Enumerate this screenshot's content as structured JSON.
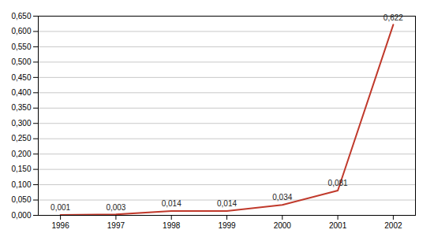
{
  "chart_data": {
    "type": "line",
    "x": [
      1996,
      1997,
      1998,
      1999,
      2000,
      2001,
      2002
    ],
    "values": [
      0.001,
      0.003,
      0.014,
      0.014,
      0.034,
      0.081,
      0.622
    ],
    "value_labels": [
      "0,001",
      "0,003",
      "0,014",
      "0,014",
      "0,034",
      "0,081",
      "0,622"
    ],
    "color": "#c0392b",
    "xlim": [
      1995.6,
      2002.4
    ],
    "xticks": [
      1996,
      1997,
      1998,
      1999,
      2000,
      2001,
      2002
    ],
    "ylim": [
      0,
      0.65
    ],
    "yticks": [
      {
        "value": 0,
        "label": "0,000"
      },
      {
        "value": 0.05,
        "label": "0,050"
      },
      {
        "value": 0.1,
        "label": "0,100"
      },
      {
        "value": 0.15,
        "label": "0,150"
      },
      {
        "value": 0.2,
        "label": "0,200"
      },
      {
        "value": 0.25,
        "label": "0,250"
      },
      {
        "value": 0.3,
        "label": "0,300"
      },
      {
        "value": 0.35,
        "label": "0,350"
      },
      {
        "value": 0.4,
        "label": "0,400"
      },
      {
        "value": 0.45,
        "label": "0,450"
      },
      {
        "value": 0.5,
        "label": "0,500"
      },
      {
        "value": 0.55,
        "label": "0,550"
      },
      {
        "value": 0.6,
        "label": "0,600"
      },
      {
        "value": 0.65,
        "label": "0,650"
      }
    ],
    "grid": true,
    "data_labels": true
  }
}
